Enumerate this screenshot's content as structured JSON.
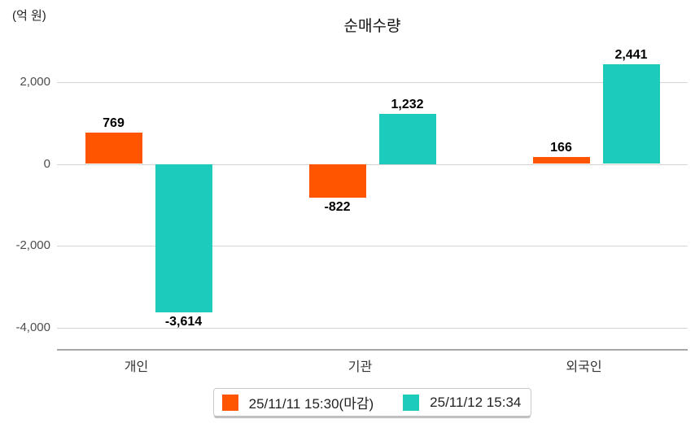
{
  "header": {
    "unit_label": "(억 원)",
    "title": "순매수량"
  },
  "chart_data": {
    "type": "bar",
    "title": "순매수량",
    "unit": "(억 원)",
    "categories": [
      "개인",
      "기관",
      "외국인"
    ],
    "series": [
      {
        "name": "25/11/11 15:30(마감)",
        "color": "#FF5500",
        "values": [
          769,
          -822,
          166
        ],
        "labels": [
          "769",
          "-822",
          "166"
        ]
      },
      {
        "name": "25/11/12 15:34",
        "color": "#1DCBBD",
        "values": [
          -3614,
          1232,
          2441
        ],
        "labels": [
          "-3,614",
          "1,232",
          "2,441"
        ]
      }
    ],
    "yticks": [
      {
        "value": 2000,
        "label": "2,000"
      },
      {
        "value": 0,
        "label": "0"
      },
      {
        "value": -2000,
        "label": "-2,000"
      },
      {
        "value": -4000,
        "label": "-4,000"
      }
    ],
    "ylim": [
      -4530,
      2820
    ],
    "grid": true,
    "legend_position": "bottom"
  },
  "legend": {
    "items": [
      {
        "label": "25/11/11 15:30(마감)",
        "color": "#FF5500"
      },
      {
        "label": "25/11/12 15:34",
        "color": "#1DCBBD"
      }
    ]
  }
}
